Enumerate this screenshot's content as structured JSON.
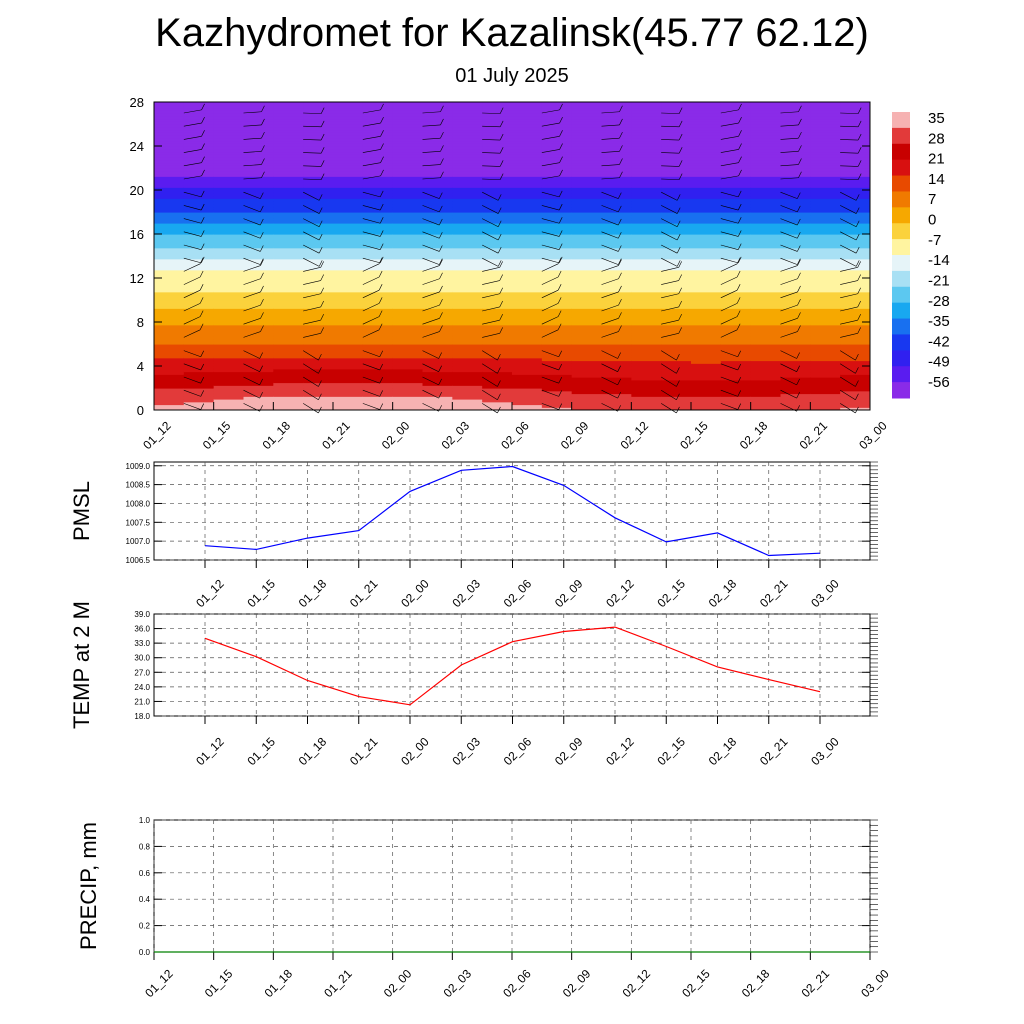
{
  "title": "Kazhydromet for Kazalinsk(45.77 62.12)",
  "subtitle": "01 July 2025",
  "chart_data": [
    {
      "type": "heatmap",
      "description_vars": "vertical cross-section over time",
      "x_ticks": [
        "01_12",
        "01_15",
        "01_18",
        "01_21",
        "02_00",
        "02_03",
        "02_06",
        "02_09",
        "02_12",
        "02_15",
        "02_18",
        "02_21",
        "03_00"
      ],
      "y_ticks": [
        "0",
        "4",
        "8",
        "12",
        "16",
        "20",
        "24",
        "28"
      ],
      "ylim": [
        0,
        28
      ],
      "colorbar_labels": [
        "35",
        "28",
        "21",
        "14",
        "7",
        "0",
        "-7",
        "-14",
        "-21",
        "-28",
        "-35",
        "-42",
        "-49",
        "-56"
      ],
      "colorbar_colors": [
        "#f6b2b2",
        "#e23a3a",
        "#c80000",
        "#d81010",
        "#e84a00",
        "#f07a00",
        "#f6a800",
        "#fbd23c",
        "#fff4a0",
        "#e6f4f8",
        "#a8e0f4",
        "#5cc8f0",
        "#18a8f0",
        "#1870f0",
        "#1838f0",
        "#3020f0",
        "#5a1cf0",
        "#8a2be8"
      ],
      "temperature_profile": {
        "levels": [
          0,
          2,
          4,
          6,
          8,
          10,
          12,
          13,
          14,
          16,
          18,
          20,
          21,
          22,
          24,
          26,
          28
        ],
        "values": [
          32,
          24,
          16,
          8,
          2,
          -6,
          -12,
          -14,
          -20,
          -30,
          -40,
          -50,
          -56,
          -58,
          -60,
          -61,
          -62
        ]
      },
      "wind_barbs": true,
      "grid": false
    },
    {
      "type": "line",
      "ylabel": "PMSL",
      "x": [
        "01_12",
        "01_15",
        "01_18",
        "01_21",
        "02_00",
        "02_03",
        "02_06",
        "02_09",
        "02_12",
        "02_15",
        "02_18",
        "02_21",
        "03_00"
      ],
      "series": [
        {
          "color": "#0000ff",
          "values": [
            1006.88,
            1006.78,
            1007.08,
            1007.28,
            1008.32,
            1008.88,
            1008.98,
            1008.48,
            1007.62,
            1006.98,
            1007.22,
            1006.62,
            1006.68
          ]
        }
      ],
      "yticks": [
        "1006.5",
        "1007.0",
        "1007.5",
        "1008.0",
        "1008.5",
        "1009.0"
      ],
      "ylim": [
        1006.5,
        1009.1
      ],
      "grid": true
    },
    {
      "type": "line",
      "ylabel": "TEMP at 2 M",
      "x": [
        "01_12",
        "01_15",
        "01_18",
        "01_21",
        "02_00",
        "02_03",
        "02_06",
        "02_09",
        "02_12",
        "02_15",
        "02_18",
        "02_21",
        "03_00"
      ],
      "series": [
        {
          "color": "#ff0000",
          "values": [
            34.0,
            30.2,
            25.3,
            22.0,
            20.3,
            28.5,
            33.3,
            35.4,
            36.3,
            32.3,
            28.1,
            25.5,
            23.0
          ]
        }
      ],
      "yticks": [
        "18.0",
        "21.0",
        "24.0",
        "27.0",
        "30.0",
        "33.0",
        "36.0",
        "39.0"
      ],
      "ylim": [
        18,
        39
      ],
      "grid": true
    },
    {
      "type": "line",
      "ylabel": "PRECIP, mm",
      "x": [
        "01_12",
        "01_15",
        "01_18",
        "01_21",
        "02_00",
        "02_03",
        "02_06",
        "02_09",
        "02_12",
        "02_15",
        "02_18",
        "02_21",
        "03_00"
      ],
      "series": [
        {
          "color": "#008000",
          "values": [
            0,
            0,
            0,
            0,
            0,
            0,
            0,
            0,
            0,
            0,
            0,
            0,
            0
          ]
        }
      ],
      "yticks": [
        "0.0",
        "0.2",
        "0.4",
        "0.6",
        "0.8",
        "1.0"
      ],
      "ylim": [
        0,
        1
      ],
      "grid": true
    }
  ]
}
